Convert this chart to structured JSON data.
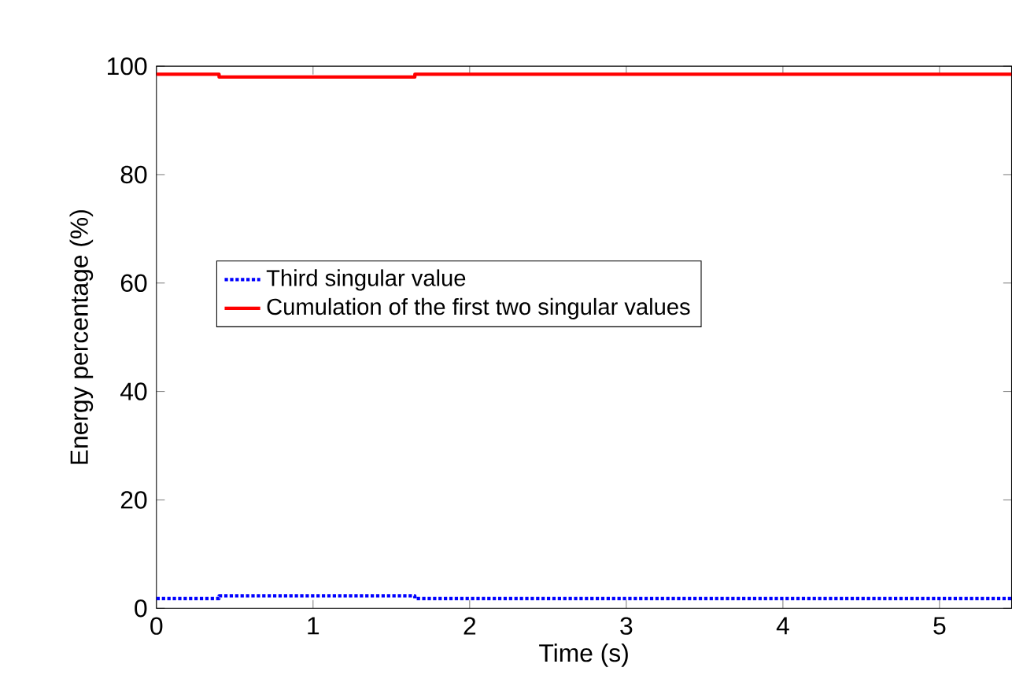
{
  "chart_data": {
    "type": "line",
    "xlabel": "Time (s)",
    "ylabel": "Energy percentage (%)",
    "x": [
      0,
      0.4,
      0.4,
      1.65,
      1.65,
      5.46
    ],
    "series": [
      {
        "name": "Third singular value",
        "color": "#0000ff",
        "line_style": "dotted",
        "values": [
          1.8,
          1.8,
          2.3,
          2.3,
          1.8,
          1.8
        ]
      },
      {
        "name": "Cumulation of the first two singular values",
        "color": "#ff0000",
        "line_style": "solid",
        "values": [
          98.5,
          98.5,
          98.0,
          98.0,
          98.5,
          98.5
        ]
      }
    ],
    "xlim": [
      0,
      5.46
    ],
    "ylim": [
      0,
      100
    ],
    "xticks": [
      0,
      1,
      2,
      3,
      4,
      5
    ],
    "yticks": [
      0,
      20,
      40,
      60,
      80,
      100
    ],
    "legend": "left",
    "grid": false
  }
}
